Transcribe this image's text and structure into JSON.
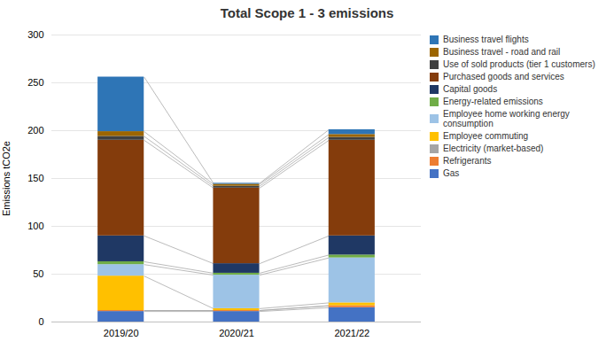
{
  "chart_data": {
    "type": "bar",
    "stacked": true,
    "title": "Total Scope 1 - 3 emissions",
    "ylabel": "Emissions tCO2e",
    "categories": [
      "2019/20",
      "2020/21",
      "2021/22"
    ],
    "series": [
      {
        "name": "Gas",
        "color": "#4472C4",
        "values": [
          11,
          11,
          15
        ]
      },
      {
        "name": "Refrigerants",
        "color": "#ED7D31",
        "values": [
          1,
          1,
          2
        ]
      },
      {
        "name": "Electricity (market-based)",
        "color": "#A5A5A5",
        "values": [
          0,
          0,
          0
        ]
      },
      {
        "name": "Employee commuting",
        "color": "#FFC000",
        "values": [
          36,
          2,
          3
        ]
      },
      {
        "name": "Employee home working energy consumption",
        "color": "#9DC3E6",
        "values": [
          12,
          35,
          47
        ]
      },
      {
        "name": "Energy-related emissions",
        "color": "#70AD47",
        "values": [
          3,
          2,
          3
        ]
      },
      {
        "name": "Capital goods",
        "color": "#1F3864",
        "values": [
          27,
          10,
          20
        ]
      },
      {
        "name": "Purchased goods and services",
        "color": "#843C0C",
        "values": [
          100,
          79,
          100
        ]
      },
      {
        "name": "Use of sold products (tier 1 customers)",
        "color": "#404040",
        "values": [
          4,
          2,
          3
        ]
      },
      {
        "name": "Business travel - road and rail",
        "color": "#9C6500",
        "values": [
          5,
          2,
          3
        ]
      },
      {
        "name": "Business travel flights",
        "color": "#2E75B6",
        "values": [
          57,
          1,
          5
        ]
      }
    ],
    "ylim": [
      0,
      300
    ],
    "yticks": [
      0,
      50,
      100,
      150,
      200,
      250,
      300
    ],
    "grid": true,
    "legend": "right"
  }
}
